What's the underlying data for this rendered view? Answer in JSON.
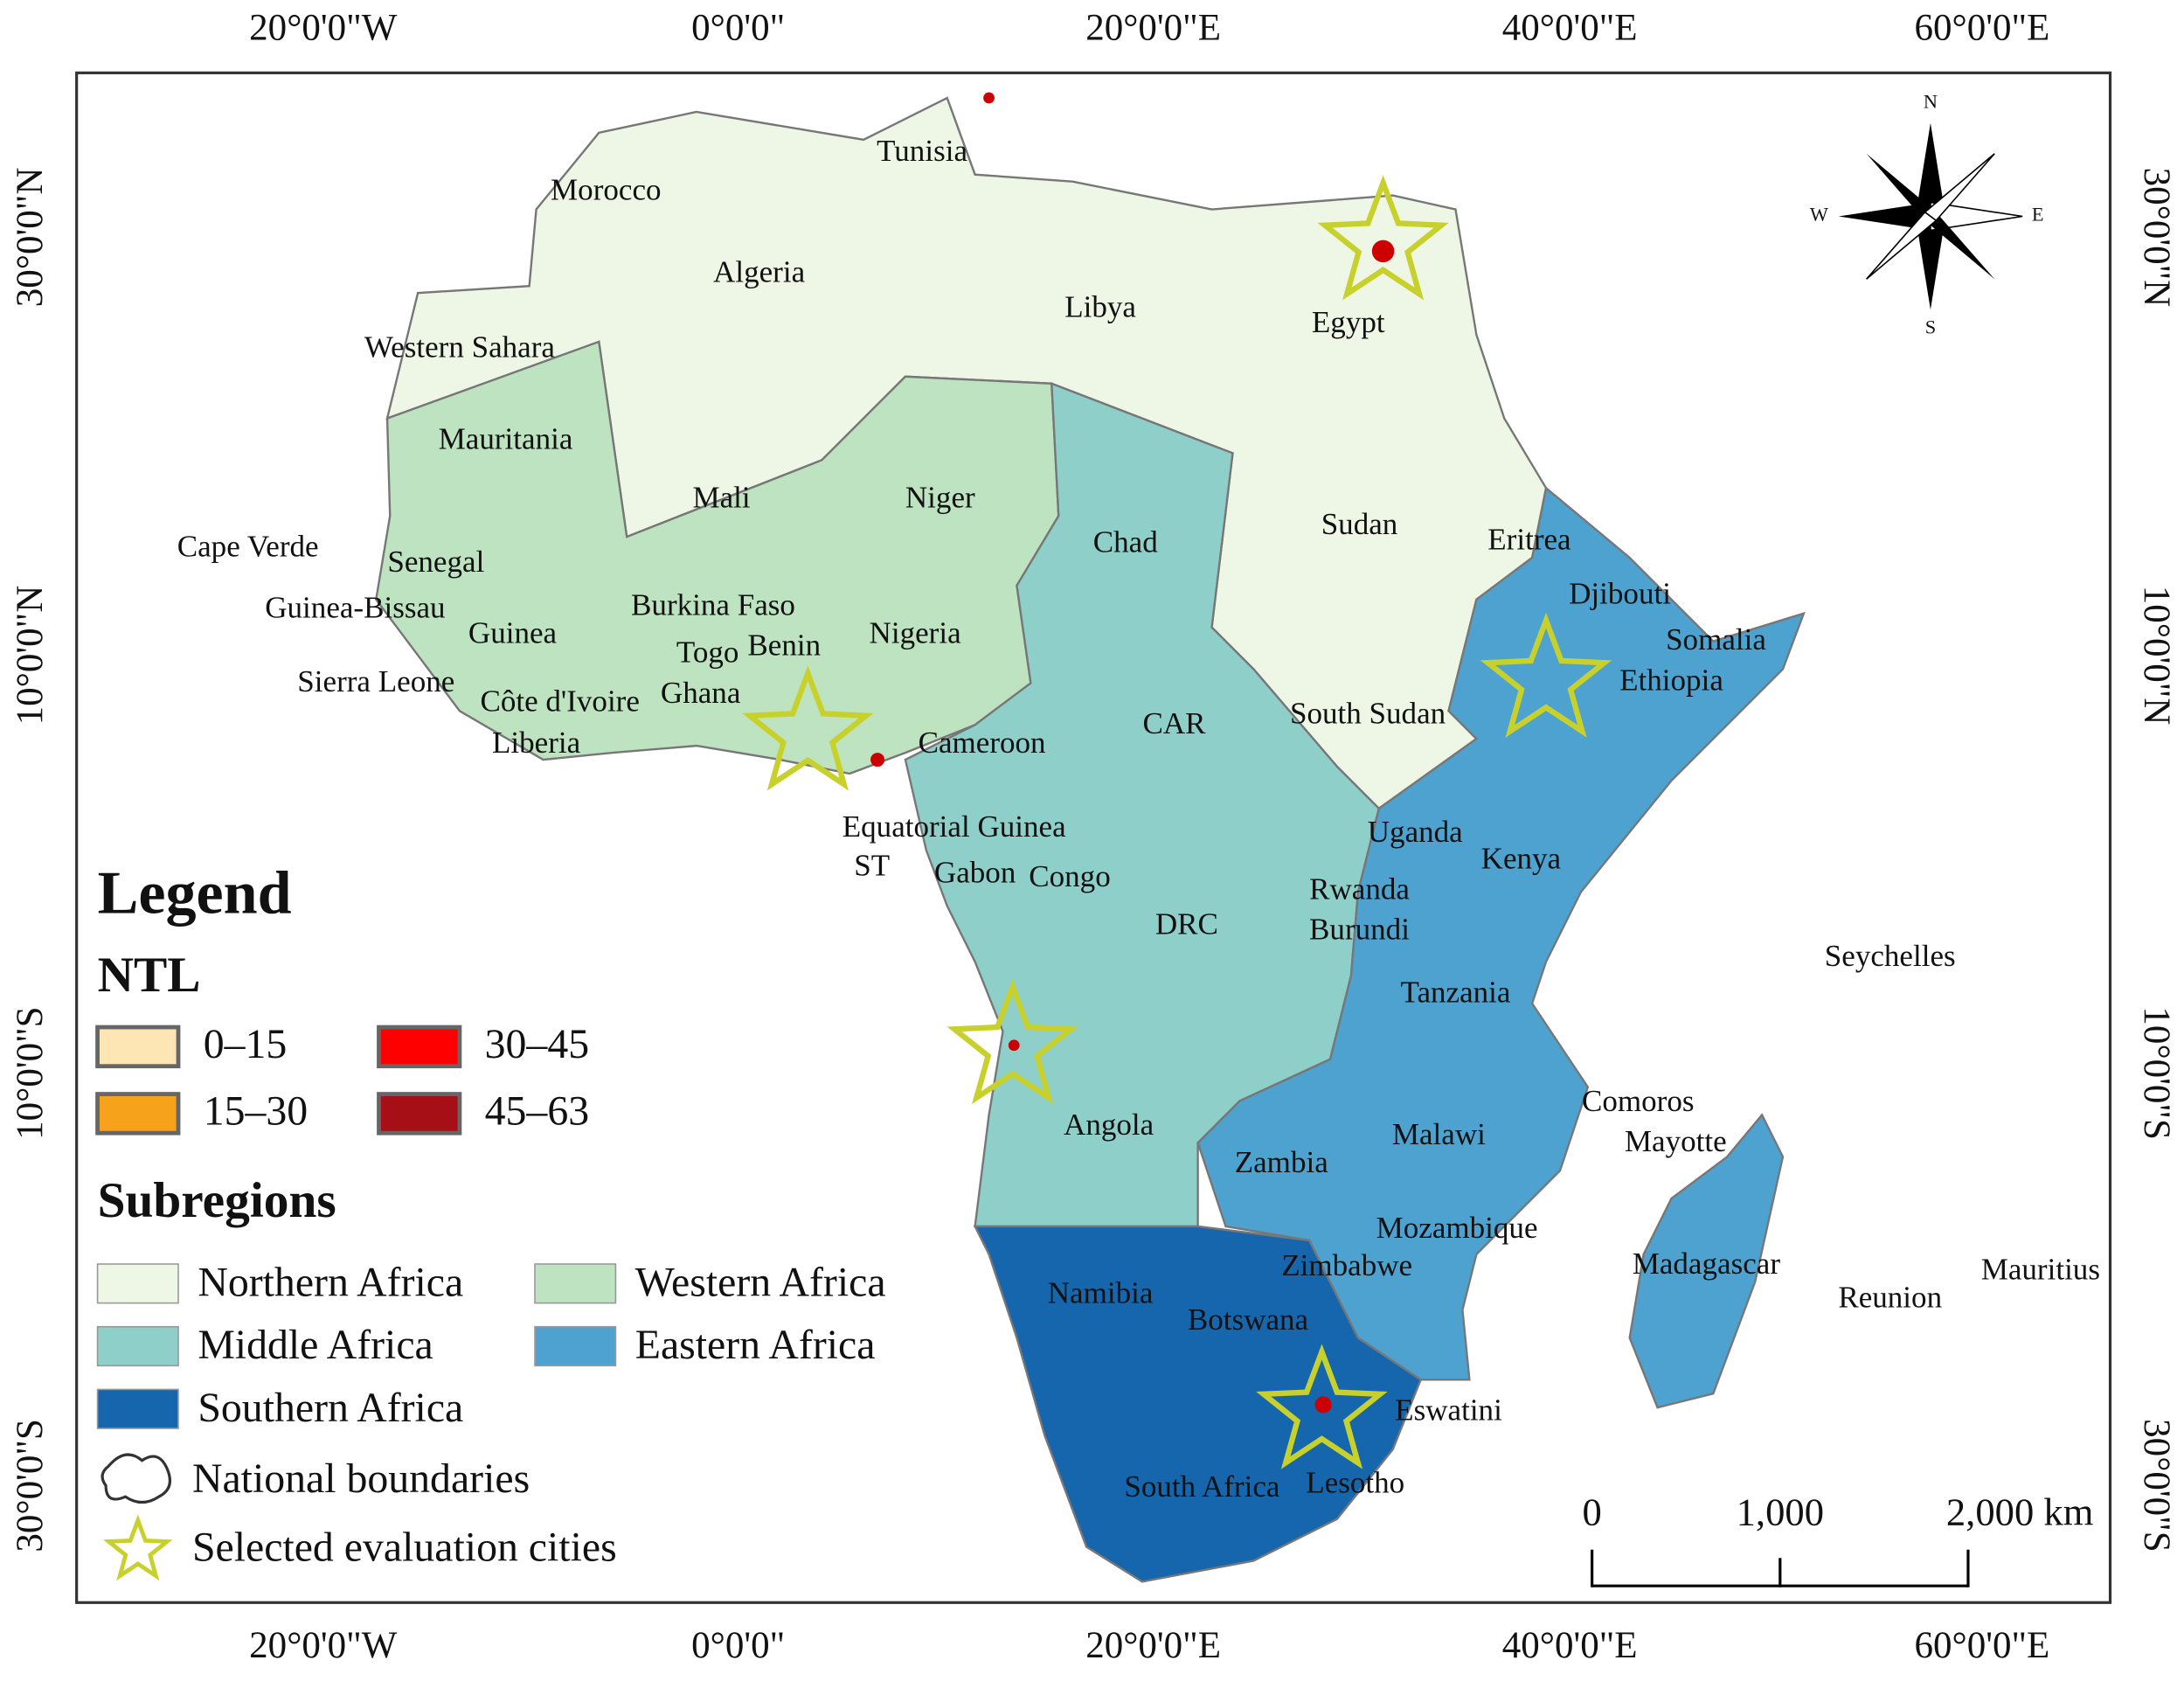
{
  "graticule": {
    "top": [
      "20°0'0\"W",
      "0°0'0\"",
      "20°0'0\"E",
      "40°0'0\"E",
      "60°0'0\"E"
    ],
    "left": [
      "30°0'0\"N",
      "10°0'0\"N",
      "10°0'0\"S",
      "30°0'0\"S"
    ]
  },
  "countries": [
    "Tunisia",
    "Morocco",
    "Algeria",
    "Libya",
    "Egypt",
    "Western Sahara",
    "Mauritania",
    "Mali",
    "Niger",
    "Chad",
    "Sudan",
    "Eritrea",
    "Djibouti",
    "Somalia",
    "Ethiopia",
    "Cape Verde",
    "Senegal",
    "Guinea-Bissau",
    "Guinea",
    "Burkina Faso",
    "Togo",
    "Benin",
    "Nigeria",
    "Sierra Leone",
    "Côte d'Ivoire",
    "Ghana",
    "Liberia",
    "Cameroon",
    "CAR",
    "South Sudan",
    "Equatorial Guinea",
    "ST",
    "Gabon",
    "Congo",
    "Uganda",
    "Kenya",
    "Rwanda",
    "Burundi",
    "DRC",
    "Seychelles",
    "Tanzania",
    "Angola",
    "Comoros",
    "Mayotte",
    "Malawi",
    "Zambia",
    "Mozambique",
    "Zimbabwe",
    "Madagascar",
    "Reunion",
    "Mauritius",
    "Namibia",
    "Botswana",
    "Eswatini",
    "South Africa",
    "Lesotho"
  ],
  "legend": {
    "title": "Legend",
    "ntl_title": "NTL",
    "ntl": [
      "0–15",
      "15–30",
      "30–45",
      "45–63"
    ],
    "subregions_title": "Subregions",
    "subregions": [
      "Northern Africa",
      "Western Africa",
      "Middle Africa",
      "Eastern Africa",
      "Southern Africa"
    ],
    "boundaries": "National boundaries",
    "cities": "Selected evaluation cities"
  },
  "compass": [
    "N",
    "S",
    "W",
    "E"
  ],
  "scale_bar": [
    "0",
    "1,000",
    "2,000 km"
  ]
}
